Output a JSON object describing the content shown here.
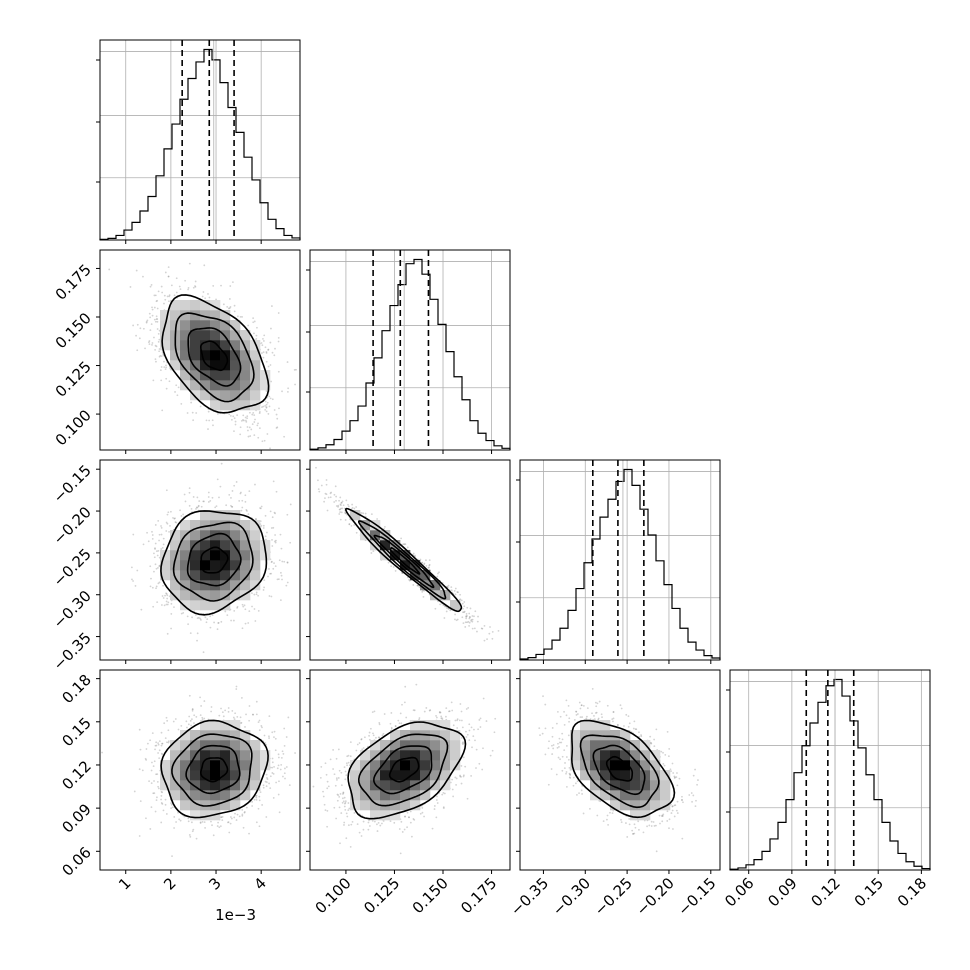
{
  "chart_data": {
    "type": "corner",
    "parameters": [
      {
        "range": [
          0.00043,
          0.00486
        ],
        "ticks": [
          0.001,
          0.002,
          0.003,
          0.004
        ],
        "tick_labels": [
          "1",
          "2",
          "3",
          "4"
        ],
        "offset_label": "1e−3",
        "quantiles": [
          0.00225,
          0.00285,
          0.0034
        ],
        "median": 0.00295,
        "hist_values": [
          0.3,
          0.8,
          2.2,
          4.8,
          8.5,
          14,
          21,
          31,
          44,
          56,
          68,
          78,
          86,
          92,
          87,
          76,
          64,
          52,
          40,
          29,
          18,
          10,
          5.5,
          2.2,
          1
        ]
      },
      {
        "range": [
          0.0815,
          0.1845
        ],
        "ticks": [
          0.1,
          0.125,
          0.15,
          0.175
        ],
        "tick_labels": [
          "0.100",
          "0.125",
          "0.150",
          "0.175"
        ],
        "quantiles": [
          0.114,
          0.128,
          0.1425
        ],
        "median": 0.13,
        "hist_values": [
          0.4,
          1,
          2.5,
          5,
          9,
          14,
          21,
          32,
          44,
          57,
          69,
          79,
          89,
          91,
          84,
          72,
          60,
          47,
          35,
          24,
          14,
          8,
          4.5,
          2,
          0.8
        ]
      },
      {
        "range": [
          -0.378,
          -0.139
        ],
        "ticks": [
          -0.35,
          -0.3,
          -0.25,
          -0.2,
          -0.15
        ],
        "tick_labels": [
          "−0.35",
          "−0.30",
          "−0.25",
          "−0.20",
          "−0.15"
        ],
        "quantiles": [
          -0.291,
          -0.261,
          -0.23
        ],
        "median": -0.255,
        "hist_values": [
          0.5,
          1.2,
          2.8,
          5.5,
          10,
          16,
          25,
          36,
          49,
          61,
          72,
          81,
          90,
          96,
          88,
          76,
          63,
          50,
          38,
          26,
          16,
          9,
          5,
          2.2,
          1
        ]
      },
      {
        "range": [
          0.047,
          0.186
        ],
        "ticks": [
          0.06,
          0.09,
          0.12,
          0.15,
          0.18
        ],
        "tick_labels": [
          "0.06",
          "0.09",
          "0.12",
          "0.15",
          "0.18"
        ],
        "quantiles": [
          0.1,
          0.115,
          0.133
        ],
        "median": 0.12,
        "hist_values": [
          0.4,
          1,
          2.5,
          5,
          9,
          15,
          23,
          34,
          47,
          60,
          71,
          81,
          89,
          92,
          84,
          72,
          59,
          46,
          34,
          23,
          14,
          8,
          4,
          1.8,
          0.7
        ]
      }
    ],
    "pairs": [
      {
        "row": 1,
        "col": 0,
        "center": [
          0.00295,
          0.13
        ],
        "sigma": [
          0.00058,
          0.0148
        ],
        "rho": -0.42
      },
      {
        "row": 2,
        "col": 0,
        "center": [
          0.00295,
          -0.259
        ],
        "sigma": [
          0.00058,
          0.0305
        ],
        "rho": 0.12
      },
      {
        "row": 2,
        "col": 1,
        "center": [
          0.13,
          -0.259
        ],
        "sigma": [
          0.0148,
          0.0305
        ],
        "rho": -0.97
      },
      {
        "row": 3,
        "col": 0,
        "center": [
          0.00295,
          0.117
        ],
        "sigma": [
          0.00058,
          0.0165
        ],
        "rho": 0.1
      },
      {
        "row": 3,
        "col": 1,
        "center": [
          0.13,
          0.117
        ],
        "sigma": [
          0.0148,
          0.0165
        ],
        "rho": 0.42
      },
      {
        "row": 3,
        "col": 2,
        "center": [
          -0.259,
          0.117
        ],
        "sigma": [
          0.0305,
          0.0165
        ],
        "rho": -0.47
      }
    ],
    "contour_levels_sigma": [
      0.5,
      1.0,
      1.5,
      2.0
    ],
    "grid": true,
    "colors": {
      "line": "#000000",
      "grid": "#b0b0b0",
      "scatter": "#808080",
      "density_max": "#000000"
    }
  }
}
